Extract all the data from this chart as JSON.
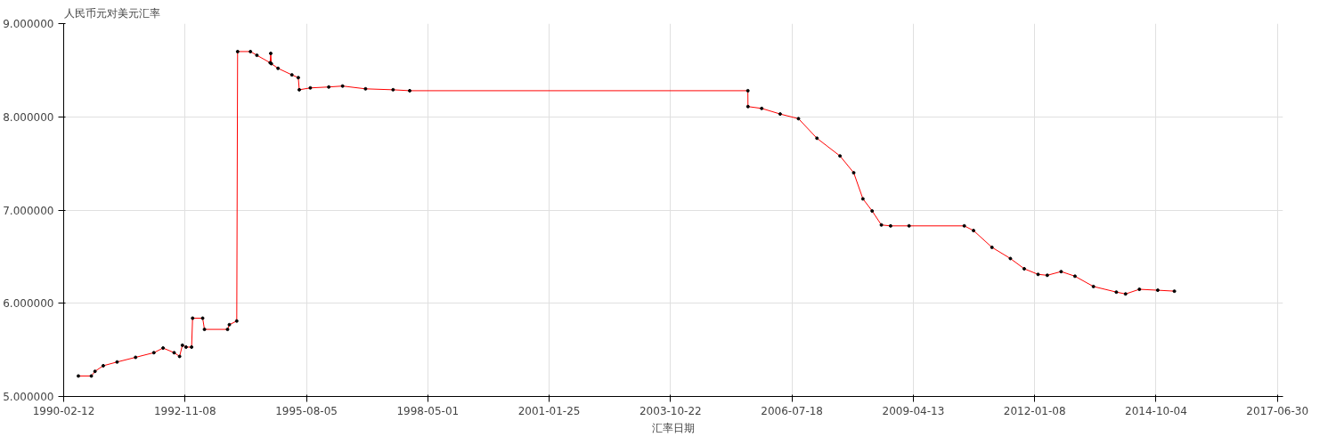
{
  "chart_data": {
    "type": "line",
    "xlabel": "汇率日期",
    "ylabel": "人民币元对美元汇率",
    "x": [
      "1990-06-13",
      "1990-09-28",
      "1990-10-28",
      "1991-01-04",
      "1991-04-28",
      "1991-09-27",
      "1992-02-25",
      "1992-05-11",
      "1992-08-10",
      "1992-09-24",
      "1992-10-17",
      "1992-11-16",
      "1993-01-01",
      "1993-01-09",
      "1993-04-02",
      "1993-04-17",
      "1993-10-24",
      "1993-11-08",
      "1994-01-08",
      "1994-01-15",
      "1994-05-01",
      "1994-06-23",
      "1994-10-10",
      "1994-10-15",
      "1994-10-20",
      "1994-12-14",
      "1995-04-07",
      "1995-05-30",
      "1995-06-07",
      "1995-09-06",
      "1996-02-05",
      "1996-05-29",
      "1996-12-04",
      "1997-07-19",
      "1997-12-03",
      "2005-07-20",
      "2005-07-21",
      "2005-11-11",
      "2006-04-12",
      "2006-09-10",
      "2007-02-09",
      "2007-08-18",
      "2007-12-09",
      "2008-02-23",
      "2008-05-09",
      "2008-07-24",
      "2008-10-08",
      "2009-03-09",
      "2010-06-07",
      "2010-08-22",
      "2011-01-21",
      "2011-06-22",
      "2011-10-14",
      "2012-02-05",
      "2012-04-21",
      "2012-08-13",
      "2012-12-05",
      "2013-05-06",
      "2013-11-11",
      "2014-01-26",
      "2014-05-20",
      "2014-10-18",
      "2015-03-04"
    ],
    "series": [
      {
        "color": "#ff0000",
        "values": [
          5.22,
          5.22,
          5.27,
          5.33,
          5.37,
          5.42,
          5.47,
          5.52,
          5.47,
          5.43,
          5.55,
          5.53,
          5.53,
          5.84,
          5.84,
          5.72,
          5.72,
          5.77,
          5.81,
          8.7,
          8.7,
          8.66,
          8.58,
          8.68,
          8.57,
          8.52,
          8.45,
          8.42,
          8.29,
          8.31,
          8.32,
          8.33,
          8.3,
          8.29,
          8.28,
          8.28,
          8.11,
          8.09,
          8.03,
          7.98,
          7.77,
          7.58,
          7.4,
          7.12,
          6.99,
          6.84,
          6.83,
          6.83,
          6.83,
          6.78,
          6.6,
          6.48,
          6.37,
          6.31,
          6.3,
          6.34,
          6.29,
          6.18,
          6.12,
          6.1,
          6.15,
          6.14,
          6.13
        ]
      }
    ],
    "xlim": [
      "1990-02-12",
      "2017-08-15"
    ],
    "xticks": [
      "1990-02-12",
      "1992-11-08",
      "1995-08-05",
      "1998-05-01",
      "2001-01-25",
      "2003-10-22",
      "2006-07-18",
      "2009-04-13",
      "2012-01-08",
      "2014-10-04",
      "2017-06-30"
    ],
    "ylim": [
      5.0,
      9.0
    ],
    "yticks": [
      {
        "value": 5,
        "label": "5.000000"
      },
      {
        "value": 6,
        "label": "6.000000"
      },
      {
        "value": 7,
        "label": "7.000000"
      },
      {
        "value": 8,
        "label": "8.000000"
      },
      {
        "value": 9,
        "label": "9.000000"
      }
    ],
    "grid": true,
    "marker": "circle"
  }
}
